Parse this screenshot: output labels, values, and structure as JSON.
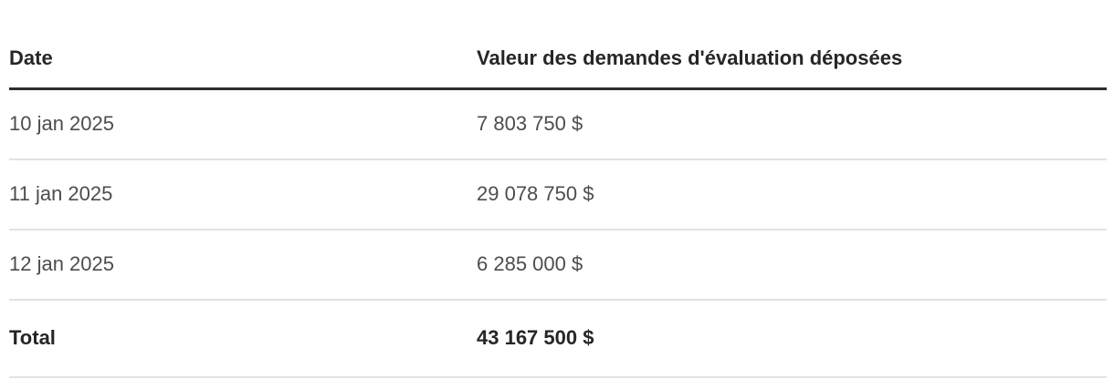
{
  "chart_data": {
    "type": "table",
    "columns": [
      "Date",
      "Valeur des demandes d'évaluation déposées"
    ],
    "rows": [
      [
        "10 jan 2025",
        "7 803 750 $"
      ],
      [
        "11 jan 2025",
        "29 078 750 $"
      ],
      [
        "12 jan 2025",
        "6 285 000 $"
      ]
    ],
    "total_row": [
      "Total",
      "43 167 500 $"
    ],
    "values_numeric": [
      7803750,
      29078750,
      6285000
    ],
    "total_numeric": 43167500
  },
  "table": {
    "header": {
      "date": "Date",
      "value": "Valeur des demandes d'évaluation déposées"
    },
    "rows": [
      {
        "date": "10 jan 2025",
        "value": "7 803 750 $"
      },
      {
        "date": "11 jan 2025",
        "value": "29 078 750 $"
      },
      {
        "date": "12 jan 2025",
        "value": "6 285 000 $"
      }
    ],
    "total": {
      "label": "Total",
      "value": "43 167 500 $"
    }
  },
  "colors": {
    "background": "#ffffff",
    "header_text": "#262626",
    "header_rule": "#2e2e2e",
    "body_text": "#4d4d4d",
    "row_divider": "#e2e2e2",
    "total_text": "#262626"
  }
}
